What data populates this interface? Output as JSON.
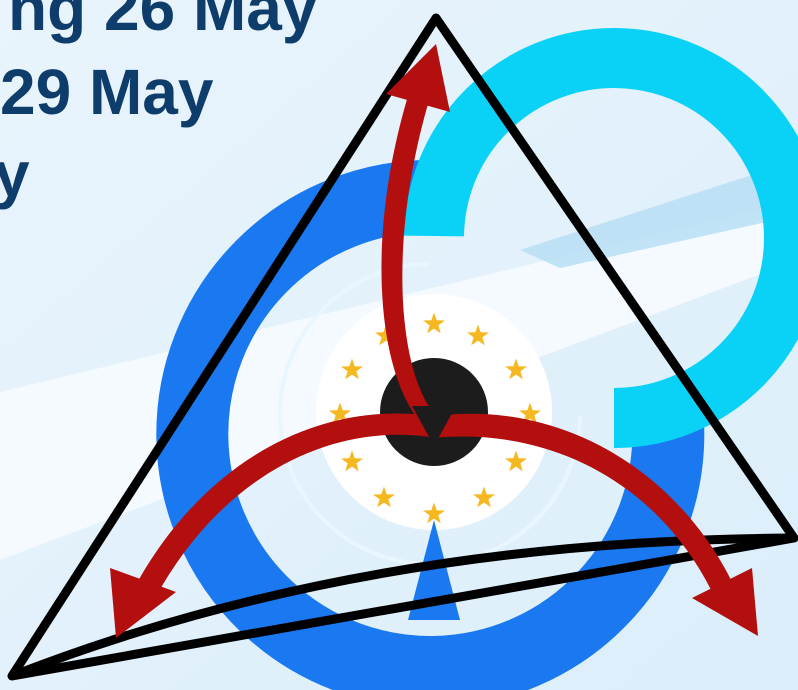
{
  "headline": {
    "line_1": "ng 26 May",
    "line_2": "29 May",
    "line_3": "y"
  },
  "logo": {
    "icon": "space-agency-logo-icon",
    "stars_count": 12,
    "colors": {
      "triangle": "#000000",
      "ring_outer": "#1a78f0",
      "ring_inner": "#0ad2f6",
      "center_disc": "#ffffff",
      "center_dot": "#1c1c1c",
      "arrows": "#b30f0f",
      "stars": "#f6b820",
      "background": "#e6f2fb"
    }
  }
}
